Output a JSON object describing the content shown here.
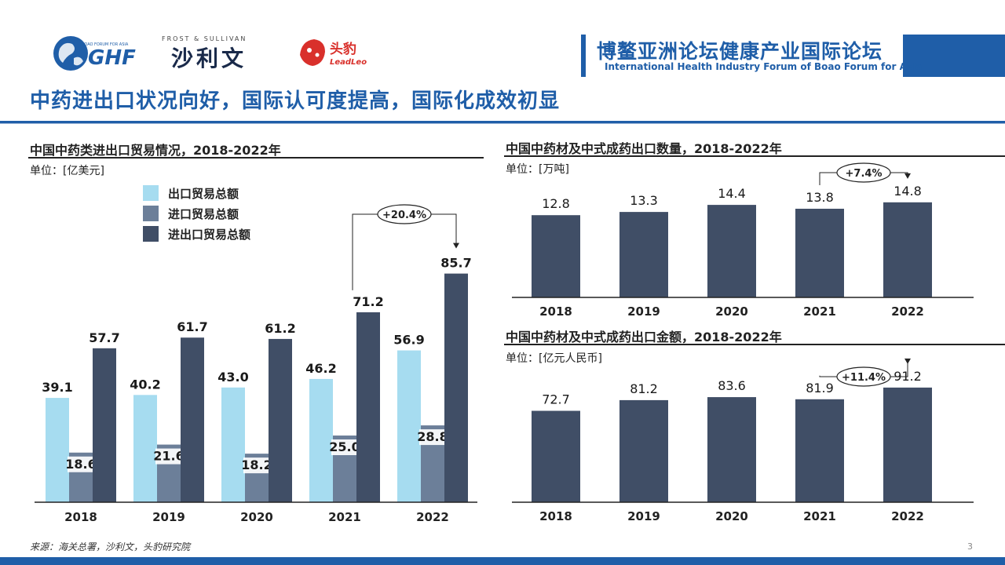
{
  "header": {
    "ghf_logo_text": "GHF",
    "ghf_logo_top": "BOAO FORUM FOR ASIA",
    "fs_logo_top": "FROST & SULLIVAN",
    "fs_logo_main": "沙利文",
    "leadleo_main": "头豹",
    "leadleo_sub": "LeadLeo",
    "forum_zh": "博鳌亚洲论坛健康产业国际论坛",
    "forum_en": "International Health Industry Forum of Boao Forum for Asia"
  },
  "page_title": "中药进出口状况向好，国际认可度提高，国际化成效初显",
  "source": "来源：海关总署，沙利文，头豹研究院",
  "page_number": "3",
  "colors": {
    "brand_blue": "#1f5ea8",
    "export": "#a6dcf0",
    "import": "#6c7f99",
    "total": "#404e66"
  },
  "chart_data": [
    {
      "type": "bar",
      "title": "中国中药类进出口贸易情况，2018-2022年",
      "unit": "单位：[亿美元]",
      "categories": [
        "2018",
        "2019",
        "2020",
        "2021",
        "2022"
      ],
      "series": [
        {
          "name": "出口贸易总额",
          "values": [
            39.1,
            40.2,
            43.0,
            46.2,
            56.9
          ],
          "labels": [
            "39.1",
            "40.2",
            "43.0",
            "46.2",
            "56.9"
          ],
          "color": "#a6dcf0"
        },
        {
          "name": "进口贸易总额",
          "values": [
            18.6,
            21.6,
            18.2,
            25.0,
            28.8
          ],
          "labels": [
            "18.6",
            "21.6",
            "18.2",
            "25.0",
            "28.8"
          ],
          "color": "#6c7f99"
        },
        {
          "name": "进出口贸易总额",
          "values": [
            57.7,
            61.7,
            61.2,
            71.2,
            85.7
          ],
          "labels": [
            "57.7",
            "61.7",
            "61.2",
            "71.2",
            "85.7"
          ],
          "color": "#404e66"
        }
      ],
      "ylim": [
        0,
        100
      ],
      "annotation": {
        "text": "+20.4%",
        "from": "2021",
        "to": "2022"
      },
      "legend": "top-left"
    },
    {
      "type": "bar",
      "title": "中国中药材及中式成药出口数量，2018-2022年",
      "unit": "单位：[万吨]",
      "categories": [
        "2018",
        "2019",
        "2020",
        "2021",
        "2022"
      ],
      "values": [
        12.8,
        13.3,
        14.4,
        13.8,
        14.8
      ],
      "labels": [
        "12.8",
        "13.3",
        "14.4",
        "13.8",
        "14.8"
      ],
      "ylim": [
        0,
        16
      ],
      "annotation": {
        "text": "+7.4%",
        "from": "2021",
        "to": "2022"
      }
    },
    {
      "type": "bar",
      "title": "中国中药材及中式成药出口金额，2018-2022年",
      "unit": "单位：[亿元人民币]",
      "categories": [
        "2018",
        "2019",
        "2020",
        "2021",
        "2022"
      ],
      "values": [
        72.7,
        81.2,
        83.6,
        81.9,
        91.2
      ],
      "labels": [
        "72.7",
        "81.2",
        "83.6",
        "81.9",
        "91.2"
      ],
      "ylim": [
        0,
        98
      ],
      "annotation": {
        "text": "+11.4%",
        "from": "2021",
        "to": "2022"
      }
    }
  ]
}
